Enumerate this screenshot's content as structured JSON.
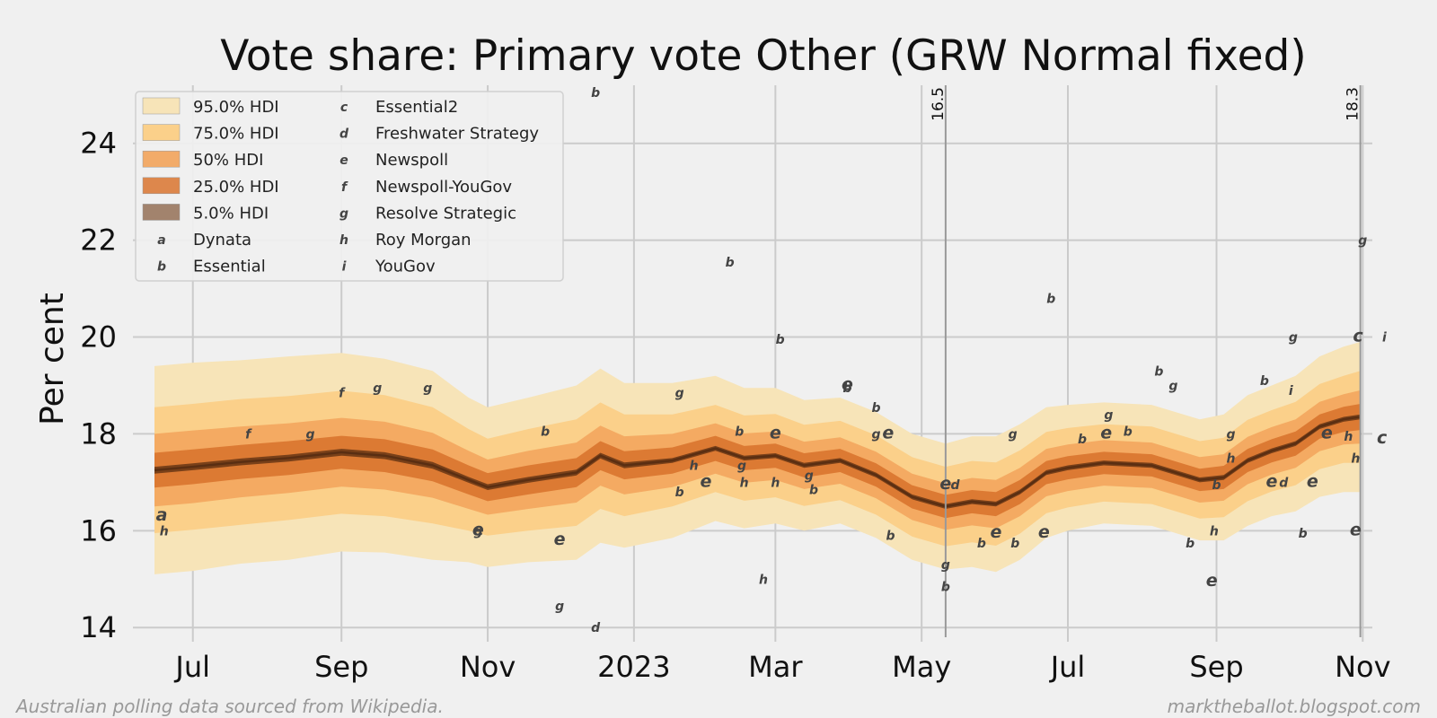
{
  "chart_data": {
    "type": "area",
    "title": "Vote share: Primary vote Other (GRW Normal fixed)",
    "xlabel": "",
    "ylabel": "Per cent",
    "ylim": [
      13.8,
      25.2
    ],
    "yticks": [
      14,
      16,
      18,
      20,
      22,
      24
    ],
    "xlim": [
      -25,
      492
    ],
    "xtick_labels": [
      "Jul",
      "Sep",
      "Nov",
      "2023",
      "Mar",
      "May",
      "Jul",
      "Sep",
      "Nov"
    ],
    "xtick_days": [
      0,
      62,
      123,
      184,
      243,
      304,
      365,
      427,
      488
    ],
    "grid": true,
    "colors": {
      "band95": "#f7e4b8",
      "band75": "#fbd08a",
      "band50": "#f2a35a",
      "band25": "#d9742f",
      "band5": "#6e3a16",
      "median": "#5a2e12",
      "points": "#444444",
      "vline": "#999999"
    },
    "vertical_markers": [
      {
        "day": 314,
        "label": "16.5"
      },
      {
        "day": 487,
        "label": "18.3"
      }
    ],
    "series": {
      "days": [
        -16,
        0,
        20,
        40,
        62,
        80,
        100,
        115,
        123,
        140,
        160,
        170,
        180,
        200,
        218,
        230,
        243,
        255,
        270,
        285,
        300,
        314,
        325,
        335,
        345,
        356,
        365,
        380,
        400,
        420,
        430,
        440,
        450,
        460,
        470,
        480,
        487
      ],
      "median": [
        17.25,
        17.32,
        17.42,
        17.5,
        17.62,
        17.55,
        17.35,
        17.05,
        16.9,
        17.05,
        17.2,
        17.55,
        17.35,
        17.45,
        17.7,
        17.5,
        17.55,
        17.35,
        17.45,
        17.15,
        16.7,
        16.5,
        16.6,
        16.55,
        16.8,
        17.2,
        17.3,
        17.4,
        17.35,
        17.05,
        17.1,
        17.45,
        17.65,
        17.8,
        18.15,
        18.3,
        18.35
      ],
      "half_widths": {
        "w95": [
          2.15,
          2.15,
          2.1,
          2.1,
          2.05,
          2.0,
          1.95,
          1.7,
          1.65,
          1.7,
          1.8,
          1.8,
          1.7,
          1.6,
          1.5,
          1.45,
          1.4,
          1.35,
          1.3,
          1.3,
          1.3,
          1.3,
          1.35,
          1.4,
          1.4,
          1.35,
          1.3,
          1.25,
          1.25,
          1.25,
          1.3,
          1.35,
          1.35,
          1.4,
          1.45,
          1.5,
          1.55
        ],
        "w75": [
          1.3,
          1.3,
          1.3,
          1.28,
          1.27,
          1.25,
          1.2,
          1.05,
          1.0,
          1.05,
          1.1,
          1.1,
          1.05,
          0.95,
          0.9,
          0.88,
          0.86,
          0.84,
          0.82,
          0.82,
          0.82,
          0.82,
          0.84,
          0.86,
          0.86,
          0.84,
          0.82,
          0.8,
          0.8,
          0.8,
          0.82,
          0.84,
          0.84,
          0.86,
          0.88,
          0.9,
          0.95
        ],
        "w50": [
          0.75,
          0.75,
          0.73,
          0.72,
          0.71,
          0.7,
          0.67,
          0.6,
          0.57,
          0.6,
          0.62,
          0.62,
          0.6,
          0.55,
          0.52,
          0.51,
          0.5,
          0.49,
          0.48,
          0.48,
          0.48,
          0.48,
          0.49,
          0.5,
          0.5,
          0.49,
          0.48,
          0.47,
          0.47,
          0.47,
          0.48,
          0.49,
          0.49,
          0.5,
          0.51,
          0.52,
          0.55
        ],
        "w25": [
          0.36,
          0.36,
          0.35,
          0.35,
          0.34,
          0.34,
          0.33,
          0.3,
          0.29,
          0.3,
          0.3,
          0.3,
          0.29,
          0.27,
          0.26,
          0.25,
          0.25,
          0.25,
          0.24,
          0.24,
          0.24,
          0.24,
          0.24,
          0.25,
          0.25,
          0.24,
          0.24,
          0.23,
          0.23,
          0.23,
          0.24,
          0.24,
          0.24,
          0.25,
          0.25,
          0.26,
          0.27
        ],
        "w5": [
          0.07,
          0.07,
          0.07,
          0.07,
          0.07,
          0.07,
          0.07,
          0.06,
          0.06,
          0.06,
          0.06,
          0.06,
          0.06,
          0.05,
          0.05,
          0.05,
          0.05,
          0.05,
          0.05,
          0.05,
          0.05,
          0.05,
          0.05,
          0.05,
          0.05,
          0.05,
          0.05,
          0.05,
          0.05,
          0.05,
          0.05,
          0.05,
          0.05,
          0.05,
          0.05,
          0.05,
          0.05
        ]
      }
    },
    "legend": {
      "position": "top-left",
      "bands": [
        "95.0% HDI",
        "75.0% HDI",
        "50% HDI",
        "25.0% HDI",
        "5.0% HDI"
      ],
      "pollsters": [
        {
          "glyph": "a",
          "name": "Dynata"
        },
        {
          "glyph": "b",
          "name": "Essential"
        },
        {
          "glyph": "c",
          "name": "Essential2"
        },
        {
          "glyph": "d",
          "name": "Freshwater Strategy"
        },
        {
          "glyph": "e",
          "name": "Newspoll"
        },
        {
          "glyph": "f",
          "name": "Newspoll-YouGov"
        },
        {
          "glyph": "g",
          "name": "Resolve Strategic"
        },
        {
          "glyph": "h",
          "name": "Roy Morgan"
        },
        {
          "glyph": "i",
          "name": "YouGov"
        }
      ]
    },
    "points": [
      {
        "g": "a",
        "x": -13,
        "y": 16.3
      },
      {
        "g": "h",
        "x": -12,
        "y": 16.0
      },
      {
        "g": "f",
        "x": 23,
        "y": 18.0
      },
      {
        "g": "g",
        "x": 49,
        "y": 18.0
      },
      {
        "g": "f",
        "x": 62,
        "y": 18.85
      },
      {
        "g": "g",
        "x": 77,
        "y": 18.95
      },
      {
        "g": "g",
        "x": 98,
        "y": 18.95
      },
      {
        "g": "g",
        "x": 119,
        "y": 16.0
      },
      {
        "g": "e",
        "x": 119,
        "y": 16.0
      },
      {
        "g": "b",
        "x": 147,
        "y": 18.05
      },
      {
        "g": "e",
        "x": 153,
        "y": 15.8
      },
      {
        "g": "g",
        "x": 153,
        "y": 14.45
      },
      {
        "g": "b",
        "x": 168,
        "y": 25.05
      },
      {
        "g": "d",
        "x": 168,
        "y": 14.0
      },
      {
        "g": "g",
        "x": 203,
        "y": 18.85
      },
      {
        "g": "b",
        "x": 203,
        "y": 16.8
      },
      {
        "g": "e",
        "x": 214,
        "y": 17.0
      },
      {
        "g": "h",
        "x": 209,
        "y": 17.35
      },
      {
        "g": "b",
        "x": 224,
        "y": 21.55
      },
      {
        "g": "b",
        "x": 228,
        "y": 18.05
      },
      {
        "g": "e",
        "x": 243,
        "y": 18.0
      },
      {
        "g": "h",
        "x": 230,
        "y": 17.0
      },
      {
        "g": "g",
        "x": 229,
        "y": 17.35
      },
      {
        "g": "h",
        "x": 238,
        "y": 15.0
      },
      {
        "g": "b",
        "x": 245,
        "y": 19.95
      },
      {
        "g": "h",
        "x": 243,
        "y": 17.0
      },
      {
        "g": "b",
        "x": 259,
        "y": 16.85
      },
      {
        "g": "g",
        "x": 257,
        "y": 17.15
      },
      {
        "g": "e",
        "x": 273,
        "y": 19.0
      },
      {
        "g": "b",
        "x": 273,
        "y": 18.95
      },
      {
        "g": "b",
        "x": 285,
        "y": 18.55
      },
      {
        "g": "g",
        "x": 285,
        "y": 18.0
      },
      {
        "g": "e",
        "x": 290,
        "y": 18.0
      },
      {
        "g": "b",
        "x": 291,
        "y": 15.9
      },
      {
        "g": "e",
        "x": 314,
        "y": 16.95
      },
      {
        "g": "d",
        "x": 318,
        "y": 16.95
      },
      {
        "g": "g",
        "x": 314,
        "y": 15.3
      },
      {
        "g": "b",
        "x": 314,
        "y": 14.85
      },
      {
        "g": "b",
        "x": 329,
        "y": 15.75
      },
      {
        "g": "e",
        "x": 335,
        "y": 15.95
      },
      {
        "g": "b",
        "x": 343,
        "y": 15.75
      },
      {
        "g": "g",
        "x": 342,
        "y": 18.0
      },
      {
        "g": "e",
        "x": 355,
        "y": 15.95
      },
      {
        "g": "b",
        "x": 358,
        "y": 20.8
      },
      {
        "g": "b",
        "x": 371,
        "y": 17.9
      },
      {
        "g": "g",
        "x": 382,
        "y": 18.4
      },
      {
        "g": "e",
        "x": 381,
        "y": 18.0
      },
      {
        "g": "b",
        "x": 390,
        "y": 18.05
      },
      {
        "g": "b",
        "x": 403,
        "y": 19.3
      },
      {
        "g": "g",
        "x": 409,
        "y": 19.0
      },
      {
        "g": "b",
        "x": 416,
        "y": 15.75
      },
      {
        "g": "e",
        "x": 425,
        "y": 14.95
      },
      {
        "g": "h",
        "x": 426,
        "y": 16.0
      },
      {
        "g": "b",
        "x": 427,
        "y": 16.95
      },
      {
        "g": "g",
        "x": 433,
        "y": 18.0
      },
      {
        "g": "h",
        "x": 433,
        "y": 17.5
      },
      {
        "g": "b",
        "x": 447,
        "y": 19.1
      },
      {
        "g": "g",
        "x": 459,
        "y": 20.0
      },
      {
        "g": "i",
        "x": 458,
        "y": 18.9
      },
      {
        "g": "b",
        "x": 463,
        "y": 15.95
      },
      {
        "g": "e",
        "x": 450,
        "y": 17.0
      },
      {
        "g": "d",
        "x": 455,
        "y": 17.0
      },
      {
        "g": "e",
        "x": 467,
        "y": 17.0
      },
      {
        "g": "e",
        "x": 473,
        "y": 18.0
      },
      {
        "g": "h",
        "x": 482,
        "y": 17.95
      },
      {
        "g": "h",
        "x": 485,
        "y": 17.5
      },
      {
        "g": "e",
        "x": 485,
        "y": 16.0
      },
      {
        "g": "c",
        "x": 486,
        "y": 20.0
      },
      {
        "g": "g",
        "x": 488,
        "y": 22.0
      },
      {
        "g": "c",
        "x": 496,
        "y": 17.9
      },
      {
        "g": "i",
        "x": 497,
        "y": 20.0
      }
    ]
  },
  "footer": {
    "left": "Australian polling data sourced from Wikipedia.",
    "right": "marktheballot.blogspot.com"
  }
}
